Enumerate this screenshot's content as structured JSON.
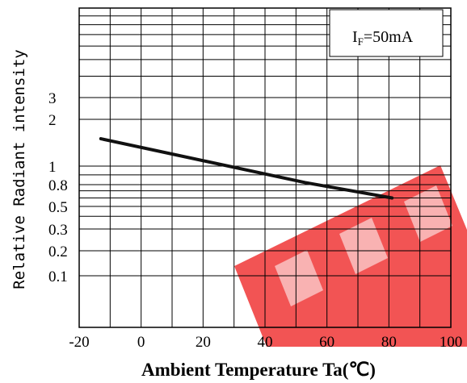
{
  "chart_data": {
    "type": "line",
    "title": "",
    "xlabel": "Ambient Temperature Ta(℃)",
    "ylabel": "Relative Radiant intensity",
    "xlim": [
      -20,
      100
    ],
    "x_ticks": [
      "-20",
      "0",
      "20",
      "40",
      "60",
      "80",
      "100"
    ],
    "y_scale": "log",
    "y_ticks": [
      "0.1",
      "0.2",
      "0.3",
      "0.5",
      "0.8",
      "1",
      "2",
      "3"
    ],
    "grid": true,
    "annotation": {
      "base": "I",
      "sub": "F",
      "rest": "=50mA"
    },
    "series": [
      {
        "x": [
          -13,
          53,
          81
        ],
        "y": [
          1.5,
          0.82,
          0.6
        ]
      }
    ],
    "colors": {
      "line": "#111111",
      "grid": "#000000",
      "watermark": "#ee2b2b"
    }
  }
}
